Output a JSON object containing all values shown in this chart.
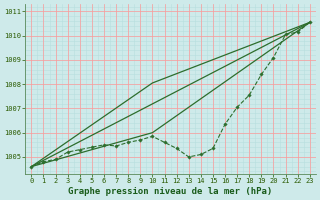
{
  "title": "Graphe pression niveau de la mer (hPa)",
  "x_hours": [
    0,
    1,
    2,
    3,
    4,
    5,
    6,
    7,
    8,
    9,
    10,
    11,
    12,
    13,
    14,
    15,
    16,
    17,
    18,
    19,
    20,
    21,
    22,
    23
  ],
  "line_main": [
    1004.6,
    1004.8,
    1004.9,
    1005.2,
    1005.3,
    1005.4,
    1005.5,
    1005.45,
    1005.6,
    1005.7,
    1005.85,
    1005.6,
    1005.35,
    1005.0,
    1005.1,
    1005.35,
    1006.35,
    1007.05,
    1007.55,
    1008.4,
    1009.1,
    1010.05,
    1010.15,
    1010.55
  ],
  "line_straight": [
    [
      0,
      23
    ],
    [
      1004.6,
      1010.55
    ]
  ],
  "line_bent1": [
    [
      0,
      10,
      23
    ],
    [
      1004.6,
      1008.05,
      1010.55
    ]
  ],
  "line_bent2": [
    [
      0,
      10,
      23
    ],
    [
      1004.6,
      1006.0,
      1010.55
    ]
  ],
  "bg_color": "#ceeaea",
  "grid_color_major": "#ff9999",
  "grid_color_minor": "#b8dede",
  "line_color": "#2d6e2d",
  "ylim": [
    1004.3,
    1011.3
  ],
  "xlim": [
    -0.5,
    23.5
  ],
  "yticks": [
    1005,
    1006,
    1007,
    1008,
    1009,
    1010,
    1011
  ],
  "xticks": [
    0,
    1,
    2,
    3,
    4,
    5,
    6,
    7,
    8,
    9,
    10,
    11,
    12,
    13,
    14,
    15,
    16,
    17,
    18,
    19,
    20,
    21,
    22,
    23
  ],
  "title_color": "#1a5c1a",
  "title_fontsize": 6.5,
  "tick_fontsize": 5.0,
  "axis_label_color": "#2a5a00"
}
